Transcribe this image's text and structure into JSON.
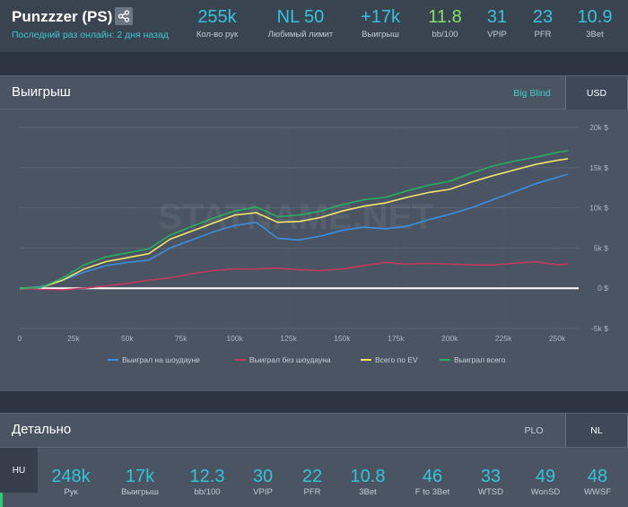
{
  "header": {
    "player_name": "Punzzzer (PS)",
    "last_online": "Последний раз онлайн: 2 дня назад",
    "share_icon": "share-icon",
    "stats": [
      {
        "value": "255k",
        "label": "Кол-во рук",
        "color": "#33c4dc"
      },
      {
        "value": "NL 50",
        "label": "Любимый лимит",
        "color": "#33c4dc"
      },
      {
        "value": "+17k",
        "label": "Выигрыш",
        "color": "#33c4dc"
      },
      {
        "value": "11.8",
        "label": "bb/100",
        "color": "#7fe36b"
      },
      {
        "value": "31",
        "label": "VPIP",
        "color": "#33c4dc"
      },
      {
        "value": "23",
        "label": "PFR",
        "color": "#33c4dc"
      },
      {
        "value": "10.9",
        "label": "3Bet",
        "color": "#33c4dc"
      }
    ]
  },
  "winnings_panel": {
    "title": "Выигрыш",
    "tabs": [
      {
        "label": "Big Blind",
        "active": false,
        "color": "#3fd0c8"
      },
      {
        "label": "USD",
        "active": true
      }
    ],
    "watermark": "STATNAME.NET"
  },
  "chart_data": {
    "type": "line",
    "x_ticks": [
      "0",
      "25k",
      "50k",
      "75k",
      "100k",
      "125k",
      "150k",
      "175k",
      "200k",
      "225k",
      "250k"
    ],
    "y_ticks": [
      "20k $",
      "15k $",
      "10k $",
      "5k $",
      "0 $",
      "-5k $"
    ],
    "xlim": [
      0,
      260000
    ],
    "ylim": [
      -5000,
      20000
    ],
    "grid": true,
    "legend_position": "bottom",
    "series": [
      {
        "name": "Выиграл на шоудауне",
        "color": "#3b8fe0",
        "x": [
          0,
          10000,
          20000,
          30000,
          40000,
          50000,
          60000,
          70000,
          80000,
          90000,
          100000,
          110000,
          120000,
          130000,
          140000,
          150000,
          160000,
          170000,
          180000,
          190000,
          200000,
          210000,
          220000,
          230000,
          240000,
          250000,
          255000
        ],
        "y": [
          0,
          200,
          1000,
          2000,
          2800,
          3200,
          3500,
          5000,
          6000,
          7000,
          7800,
          8200,
          6200,
          6000,
          6500,
          7200,
          7600,
          7400,
          7700,
          8500,
          9200,
          10000,
          11000,
          12000,
          13000,
          13800,
          14200
        ]
      },
      {
        "name": "Выиграл без шоудауна",
        "color": "#c0395f",
        "x": [
          0,
          10000,
          20000,
          30000,
          40000,
          50000,
          60000,
          70000,
          80000,
          90000,
          100000,
          110000,
          120000,
          130000,
          140000,
          150000,
          160000,
          170000,
          180000,
          190000,
          200000,
          210000,
          220000,
          230000,
          240000,
          250000,
          255000
        ],
        "y": [
          0,
          -150,
          -200,
          0,
          300,
          600,
          1000,
          1300,
          1800,
          2200,
          2400,
          2400,
          2500,
          2300,
          2200,
          2400,
          2800,
          3200,
          3000,
          3100,
          3000,
          2900,
          2900,
          3100,
          3300,
          2900,
          3000
        ]
      },
      {
        "name": "Всего по EV",
        "color": "#f1e56b",
        "x": [
          0,
          10000,
          20000,
          30000,
          40000,
          50000,
          60000,
          70000,
          80000,
          90000,
          100000,
          110000,
          120000,
          130000,
          140000,
          150000,
          160000,
          170000,
          180000,
          190000,
          200000,
          210000,
          220000,
          230000,
          240000,
          250000,
          255000
        ],
        "y": [
          0,
          100,
          1000,
          2400,
          3300,
          3800,
          4300,
          6100,
          7100,
          8100,
          9100,
          9400,
          8200,
          8300,
          8800,
          9600,
          10200,
          10600,
          11300,
          11900,
          12300,
          13200,
          14000,
          14700,
          15400,
          15900,
          16100
        ]
      },
      {
        "name": "Выиграл всего",
        "color": "#27ae60",
        "x": [
          0,
          10000,
          20000,
          30000,
          40000,
          50000,
          60000,
          70000,
          80000,
          90000,
          100000,
          110000,
          120000,
          130000,
          140000,
          150000,
          160000,
          170000,
          180000,
          190000,
          200000,
          210000,
          220000,
          230000,
          240000,
          250000,
          255000
        ],
        "y": [
          0,
          100,
          1300,
          2900,
          3900,
          4400,
          4900,
          6600,
          7700,
          8700,
          9600,
          10100,
          8900,
          9100,
          9600,
          10400,
          11000,
          11300,
          12100,
          12800,
          13300,
          14300,
          15200,
          15800,
          16300,
          16900,
          17100
        ]
      }
    ]
  },
  "detail_panel": {
    "title": "Детально",
    "tabs": [
      {
        "label": "PLO",
        "active": false
      },
      {
        "label": "NL",
        "active": true
      }
    ],
    "side_tab": "HU",
    "stats": [
      {
        "value": "248k",
        "label": "Рук"
      },
      {
        "value": "17k",
        "label": "Выигрыш"
      },
      {
        "value": "12.3",
        "label": "bb/100"
      },
      {
        "value": "30",
        "label": "VPIP"
      },
      {
        "value": "22",
        "label": "PFR"
      },
      {
        "value": "10.8",
        "label": "3Bet"
      },
      {
        "value": "46",
        "label": "F to 3Bet"
      },
      {
        "value": "33",
        "label": "WTSD"
      },
      {
        "value": "49",
        "label": "WonSD"
      },
      {
        "value": "48",
        "label": "WWSF"
      }
    ]
  }
}
